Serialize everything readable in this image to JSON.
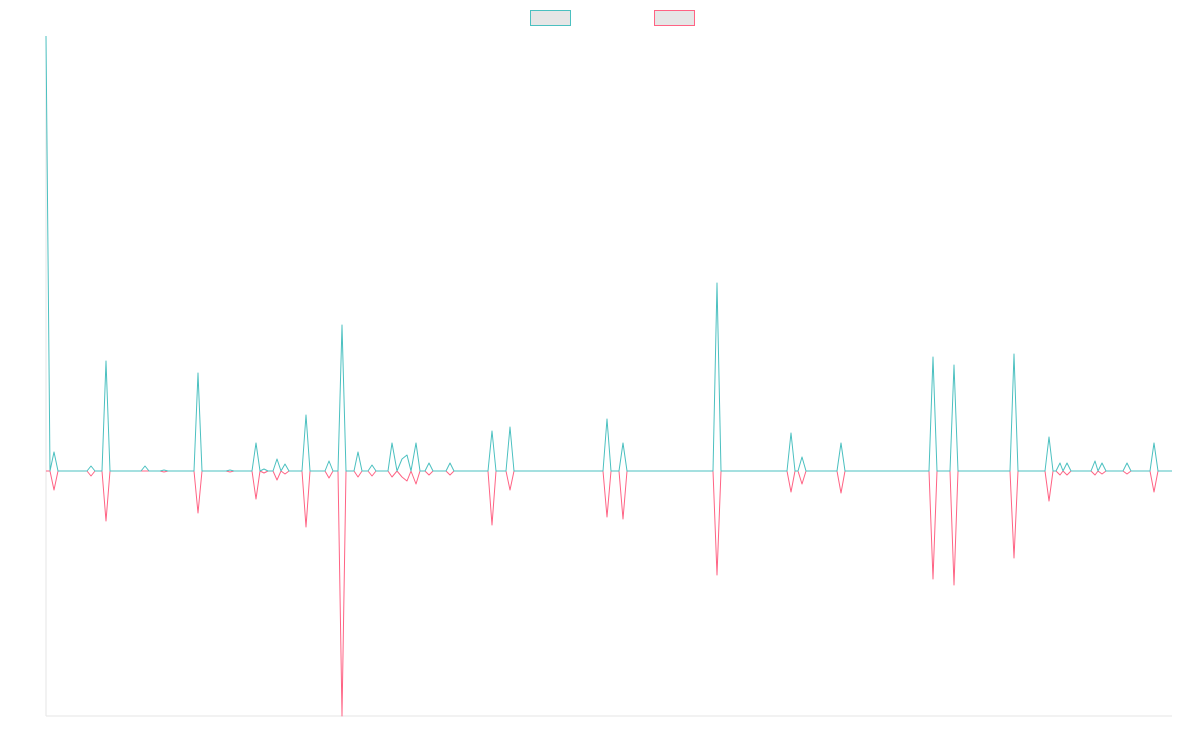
{
  "chart_data": {
    "type": "line",
    "x": [
      0,
      4,
      8,
      12,
      41,
      45,
      49,
      56,
      60,
      64,
      95,
      99,
      103,
      114,
      118,
      122,
      148,
      152,
      156,
      180,
      184,
      188,
      206,
      210,
      214,
      218,
      222,
      227,
      231,
      235,
      239,
      243,
      256,
      260,
      264,
      279,
      283,
      287,
      292,
      296,
      300,
      308,
      312,
      316,
      322,
      326,
      330,
      342,
      346,
      351,
      356,
      361,
      365,
      370,
      374,
      379,
      383,
      387,
      400,
      404,
      408,
      442,
      446,
      450,
      460,
      464,
      468,
      557,
      561,
      565,
      573,
      577,
      581,
      667,
      671,
      675,
      741,
      745,
      749,
      752,
      756,
      760,
      791,
      795,
      799,
      883,
      887,
      891,
      904,
      908,
      912,
      964,
      968,
      972,
      999,
      1003,
      1007,
      1010,
      1014,
      1017,
      1021,
      1025,
      1045,
      1049,
      1052,
      1056,
      1060,
      1077,
      1081,
      1085,
      1104,
      1108,
      1112,
      1126
    ],
    "series": [
      {
        "color": "#4bc0c0",
        "values": [
          435,
          0,
          19,
          0,
          0,
          5,
          0,
          0,
          110,
          0,
          0,
          5,
          0,
          0,
          1,
          0,
          0,
          98,
          0,
          0,
          1,
          0,
          0,
          28,
          0,
          2,
          0,
          0,
          12,
          0,
          7,
          0,
          0,
          56,
          0,
          0,
          10,
          0,
          0,
          146,
          0,
          0,
          19,
          0,
          0,
          6,
          0,
          0,
          28,
          0,
          12,
          16,
          0,
          28,
          0,
          0,
          8,
          0,
          0,
          8,
          0,
          0,
          40,
          0,
          0,
          44,
          0,
          0,
          52,
          0,
          0,
          28,
          0,
          0,
          188,
          0,
          0,
          38,
          0,
          0,
          14,
          0,
          0,
          28,
          0,
          0,
          114,
          0,
          0,
          106,
          0,
          0,
          117,
          0,
          0,
          34,
          0,
          0,
          8,
          0,
          8,
          0,
          0,
          10,
          0,
          8,
          0,
          0,
          8,
          0,
          0,
          28,
          0,
          0
        ]
      },
      {
        "color": "#ff6384",
        "values": [
          0,
          0,
          -19,
          0,
          0,
          -5,
          0,
          0,
          -50,
          0,
          0,
          0,
          0,
          0,
          -1,
          0,
          0,
          -42,
          0,
          0,
          -1,
          0,
          0,
          -28,
          0,
          -2,
          0,
          0,
          -9,
          0,
          -3,
          0,
          0,
          -56,
          0,
          0,
          -7,
          0,
          0,
          -245,
          0,
          0,
          -6,
          0,
          0,
          -5,
          0,
          0,
          -6,
          0,
          -6,
          -10,
          0,
          -13,
          0,
          0,
          -4,
          0,
          0,
          -4,
          0,
          0,
          -54,
          0,
          0,
          -19,
          0,
          0,
          -46,
          0,
          0,
          -48,
          0,
          0,
          -104,
          0,
          0,
          -21,
          0,
          0,
          -13,
          0,
          0,
          -22,
          0,
          0,
          -108,
          0,
          0,
          -114,
          0,
          0,
          -87,
          0,
          0,
          -30,
          0,
          0,
          -4,
          0,
          -4,
          0,
          0,
          -4,
          0,
          -3,
          0,
          0,
          -3,
          0,
          0,
          -21,
          0,
          0
        ]
      }
    ],
    "xlim": [
      0,
      1126
    ],
    "ylim": [
      -245,
      435
    ],
    "legend": "top"
  }
}
